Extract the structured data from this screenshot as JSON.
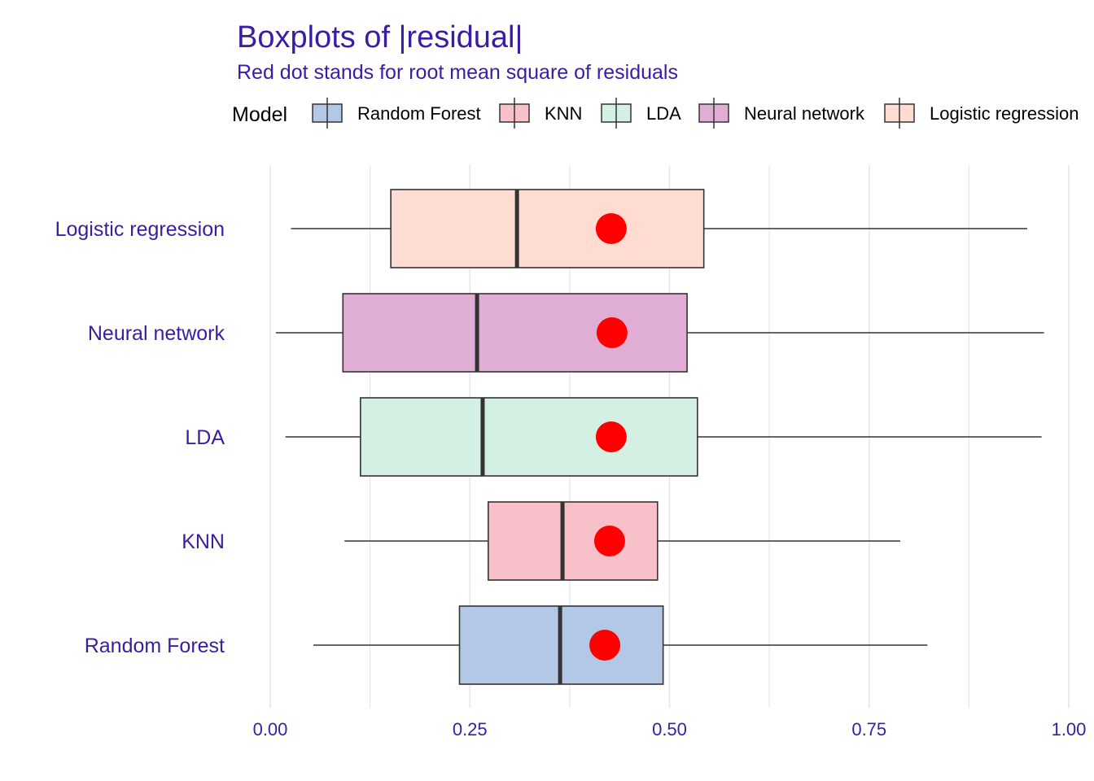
{
  "chart_data": {
    "type": "boxplot",
    "title": "Boxplots of |residual|",
    "subtitle": "Red dot stands for root mean square of residuals",
    "legend": {
      "title": "Model",
      "position": "top",
      "entries": [
        "Random Forest",
        "KNN",
        "LDA",
        "Neural network",
        "Logistic regression"
      ]
    },
    "x_axis": {
      "lim": [
        0,
        1
      ],
      "ticks": [
        0,
        0.25,
        0.5,
        0.75,
        1
      ],
      "tick_labels": [
        "0.00",
        "0.25",
        "0.50",
        "0.75",
        "1.00"
      ],
      "minor_ticks": [
        0.125,
        0.375,
        0.625,
        0.875
      ],
      "grid": true
    },
    "categories": [
      "Logistic regression",
      "Neural network",
      "LDA",
      "KNN",
      "Random Forest"
    ],
    "series": [
      {
        "name": "Logistic regression",
        "color": "#ffdcd2",
        "whisker_low": 0.026,
        "q1": 0.151,
        "median": 0.309,
        "q3": 0.543,
        "whisker_high": 0.948,
        "rmse": 0.427
      },
      {
        "name": "Neural network",
        "color": "#e0aed4",
        "whisker_low": 0.007,
        "q1": 0.091,
        "median": 0.259,
        "q3": 0.522,
        "whisker_high": 0.969,
        "rmse": 0.428
      },
      {
        "name": "LDA",
        "color": "#d3f0e3",
        "whisker_low": 0.019,
        "q1": 0.113,
        "median": 0.266,
        "q3": 0.535,
        "whisker_high": 0.966,
        "rmse": 0.427
      },
      {
        "name": "KNN",
        "color": "#f8c0c8",
        "whisker_low": 0.093,
        "q1": 0.273,
        "median": 0.366,
        "q3": 0.485,
        "whisker_high": 0.789,
        "rmse": 0.425
      },
      {
        "name": "Random Forest",
        "color": "#b3c8e6",
        "whisker_low": 0.054,
        "q1": 0.237,
        "median": 0.363,
        "q3": 0.492,
        "whisker_high": 0.823,
        "rmse": 0.419
      }
    ],
    "colors": {
      "text": "#371ea3",
      "grid": "#e6e6e6",
      "box_stroke": "#333333",
      "rmse_dot": "#ff0000"
    }
  }
}
